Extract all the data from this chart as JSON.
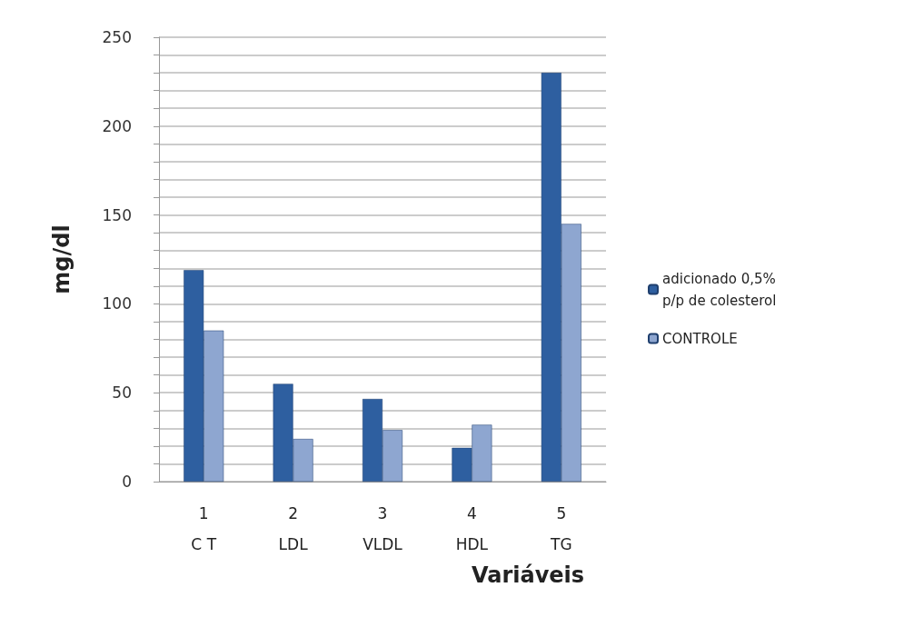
{
  "chart_data": {
    "type": "bar",
    "xlabel": "Variáveis",
    "ylabel": "mg/dl",
    "categories": [
      "1\nC T",
      "2\nLDL",
      "3\nVLDL",
      "4\nHDL",
      "5\nTG"
    ],
    "series": [
      {
        "name": "adicionado 0,5%\np/p de colesterol",
        "color": "#2e5fa0",
        "values": [
          119,
          55,
          46.5,
          19,
          230
        ]
      },
      {
        "name": "CONTROLE",
        "color": "#8ea6d0",
        "values": [
          85,
          24,
          29,
          32,
          145
        ]
      }
    ],
    "ylim": [
      0,
      250
    ],
    "yticks": [
      0,
      {
        "value": 10,
        "label": null
      },
      {
        "value": 20,
        "label": null
      },
      {
        "value": 30,
        "label": null
      },
      {
        "value": 40,
        "label": null
      },
      50,
      {
        "value": 60,
        "label": null
      },
      {
        "value": 70,
        "label": null
      },
      {
        "value": 80,
        "label": null
      },
      {
        "value": 90,
        "label": null
      },
      100,
      {
        "value": 110,
        "label": null
      },
      {
        "value": 120,
        "label": null
      },
      {
        "value": 130,
        "label": null
      },
      {
        "value": 140,
        "label": null
      },
      150,
      {
        "value": 160,
        "label": null
      },
      {
        "value": 170,
        "label": null
      },
      {
        "value": 180,
        "label": null
      },
      {
        "value": 190,
        "label": null
      },
      200,
      {
        "value": 210,
        "label": null
      },
      {
        "value": 220,
        "label": null
      },
      {
        "value": 230,
        "label": null
      },
      {
        "value": 240,
        "label": null
      },
      250
    ],
    "grid": true,
    "legend": "right"
  }
}
